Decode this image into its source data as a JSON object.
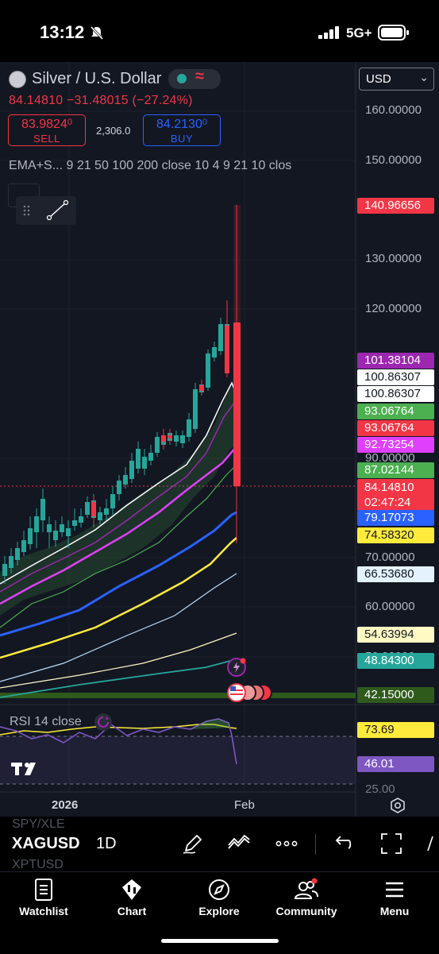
{
  "status_bar": {
    "time": "13:12",
    "network": "5G+"
  },
  "header": {
    "symbol_title": "Silver / U.S. Dollar",
    "last_price": "84.14810",
    "change": "−31.48015",
    "change_pct": "(−27.24%)",
    "sell": {
      "price": "83.9824",
      "price_small": "0",
      "label": "SELL"
    },
    "buy": {
      "price": "84.2130",
      "price_small": "0",
      "label": "BUY"
    },
    "spread": "2,306.0",
    "indicator_text": "EMA+S...  9 21 50 100 200 close 10 4 9 21 10 clos",
    "currency": "USD"
  },
  "price_axis": {
    "labels": [
      "160.00000",
      "150.00000",
      "130.00000",
      "120.00000",
      "90.00000",
      "70.00000",
      "60.00000",
      "50.00000"
    ]
  },
  "price_tags": [
    {
      "value": "140.96656",
      "bg": "#f23645",
      "fg": "#ffffff"
    },
    {
      "value": "101.38104",
      "bg": "#9c27b0",
      "fg": "#ffffff"
    },
    {
      "value": "100.86307",
      "bg": "#ffffff",
      "fg": "#131722"
    },
    {
      "value": "100.86307",
      "bg": "#ffffff",
      "fg": "#131722"
    },
    {
      "value": "93.06764",
      "bg": "#4caf50",
      "fg": "#ffffff"
    },
    {
      "value": "93.06764",
      "bg": "#f23645",
      "fg": "#ffffff"
    },
    {
      "value": "92.73254",
      "bg": "#e040fb",
      "fg": "#ffffff"
    },
    {
      "value": "87.02144",
      "bg": "#4caf50",
      "fg": "#ffffff"
    },
    {
      "value": "84.14810",
      "countdown": "02:47:24",
      "bg": "#f23645",
      "fg": "#ffffff"
    },
    {
      "value": "79.17073",
      "bg": "#2962ff",
      "fg": "#ffffff"
    },
    {
      "value": "74.58320",
      "bg": "#ffeb3b",
      "fg": "#131722"
    },
    {
      "value": "66.53680",
      "bg": "#e3f2fd",
      "fg": "#131722"
    },
    {
      "value": "54.63994",
      "bg": "#fff9c4",
      "fg": "#131722"
    },
    {
      "value": "48.84300",
      "bg": "#26a69a",
      "fg": "#ffffff"
    },
    {
      "value": "42.15000",
      "bg": "#2e5a1c",
      "fg": "#ffffff"
    }
  ],
  "rsi": {
    "title": "RSI 14 close",
    "value_a": "73.69",
    "value_b": "46.01",
    "axis_label": "25.00"
  },
  "time_axis": {
    "year": "2026",
    "month": "Feb"
  },
  "toolbar": {
    "symbol": "XAGUSD",
    "interval": "1D",
    "ghost_above": "SPY/XLE",
    "ghost_below": "XPTUSD"
  },
  "nav": [
    {
      "label": "Watchlist",
      "icon": "watchlist-icon"
    },
    {
      "label": "Chart",
      "icon": "chart-icon"
    },
    {
      "label": "Explore",
      "icon": "compass-icon"
    },
    {
      "label": "Community",
      "icon": "community-icon"
    },
    {
      "label": "Menu",
      "icon": "menu-icon"
    }
  ],
  "colors": {
    "up": "#26a69a",
    "down": "#f23645",
    "background": "#131722"
  }
}
